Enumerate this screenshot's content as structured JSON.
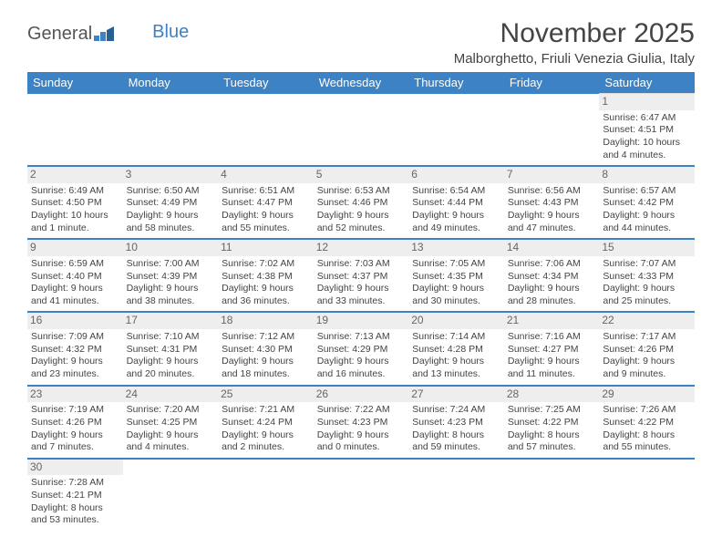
{
  "logo": {
    "text1": "General",
    "text2": "Blue"
  },
  "title": "November 2025",
  "location": "Malborghetto, Friuli Venezia Giulia, Italy",
  "colors": {
    "header_bg": "#3d82c4",
    "header_text": "#ffffff",
    "row_divider": "#3d82c4",
    "daynum_bg": "#eeeeee",
    "text": "#444444"
  },
  "day_headers": [
    "Sunday",
    "Monday",
    "Tuesday",
    "Wednesday",
    "Thursday",
    "Friday",
    "Saturday"
  ],
  "weeks": [
    [
      null,
      null,
      null,
      null,
      null,
      null,
      {
        "n": "1",
        "sr": "Sunrise: 6:47 AM",
        "ss": "Sunset: 4:51 PM",
        "d1": "Daylight: 10 hours",
        "d2": "and 4 minutes."
      }
    ],
    [
      {
        "n": "2",
        "sr": "Sunrise: 6:49 AM",
        "ss": "Sunset: 4:50 PM",
        "d1": "Daylight: 10 hours",
        "d2": "and 1 minute."
      },
      {
        "n": "3",
        "sr": "Sunrise: 6:50 AM",
        "ss": "Sunset: 4:49 PM",
        "d1": "Daylight: 9 hours",
        "d2": "and 58 minutes."
      },
      {
        "n": "4",
        "sr": "Sunrise: 6:51 AM",
        "ss": "Sunset: 4:47 PM",
        "d1": "Daylight: 9 hours",
        "d2": "and 55 minutes."
      },
      {
        "n": "5",
        "sr": "Sunrise: 6:53 AM",
        "ss": "Sunset: 4:46 PM",
        "d1": "Daylight: 9 hours",
        "d2": "and 52 minutes."
      },
      {
        "n": "6",
        "sr": "Sunrise: 6:54 AM",
        "ss": "Sunset: 4:44 PM",
        "d1": "Daylight: 9 hours",
        "d2": "and 49 minutes."
      },
      {
        "n": "7",
        "sr": "Sunrise: 6:56 AM",
        "ss": "Sunset: 4:43 PM",
        "d1": "Daylight: 9 hours",
        "d2": "and 47 minutes."
      },
      {
        "n": "8",
        "sr": "Sunrise: 6:57 AM",
        "ss": "Sunset: 4:42 PM",
        "d1": "Daylight: 9 hours",
        "d2": "and 44 minutes."
      }
    ],
    [
      {
        "n": "9",
        "sr": "Sunrise: 6:59 AM",
        "ss": "Sunset: 4:40 PM",
        "d1": "Daylight: 9 hours",
        "d2": "and 41 minutes."
      },
      {
        "n": "10",
        "sr": "Sunrise: 7:00 AM",
        "ss": "Sunset: 4:39 PM",
        "d1": "Daylight: 9 hours",
        "d2": "and 38 minutes."
      },
      {
        "n": "11",
        "sr": "Sunrise: 7:02 AM",
        "ss": "Sunset: 4:38 PM",
        "d1": "Daylight: 9 hours",
        "d2": "and 36 minutes."
      },
      {
        "n": "12",
        "sr": "Sunrise: 7:03 AM",
        "ss": "Sunset: 4:37 PM",
        "d1": "Daylight: 9 hours",
        "d2": "and 33 minutes."
      },
      {
        "n": "13",
        "sr": "Sunrise: 7:05 AM",
        "ss": "Sunset: 4:35 PM",
        "d1": "Daylight: 9 hours",
        "d2": "and 30 minutes."
      },
      {
        "n": "14",
        "sr": "Sunrise: 7:06 AM",
        "ss": "Sunset: 4:34 PM",
        "d1": "Daylight: 9 hours",
        "d2": "and 28 minutes."
      },
      {
        "n": "15",
        "sr": "Sunrise: 7:07 AM",
        "ss": "Sunset: 4:33 PM",
        "d1": "Daylight: 9 hours",
        "d2": "and 25 minutes."
      }
    ],
    [
      {
        "n": "16",
        "sr": "Sunrise: 7:09 AM",
        "ss": "Sunset: 4:32 PM",
        "d1": "Daylight: 9 hours",
        "d2": "and 23 minutes."
      },
      {
        "n": "17",
        "sr": "Sunrise: 7:10 AM",
        "ss": "Sunset: 4:31 PM",
        "d1": "Daylight: 9 hours",
        "d2": "and 20 minutes."
      },
      {
        "n": "18",
        "sr": "Sunrise: 7:12 AM",
        "ss": "Sunset: 4:30 PM",
        "d1": "Daylight: 9 hours",
        "d2": "and 18 minutes."
      },
      {
        "n": "19",
        "sr": "Sunrise: 7:13 AM",
        "ss": "Sunset: 4:29 PM",
        "d1": "Daylight: 9 hours",
        "d2": "and 16 minutes."
      },
      {
        "n": "20",
        "sr": "Sunrise: 7:14 AM",
        "ss": "Sunset: 4:28 PM",
        "d1": "Daylight: 9 hours",
        "d2": "and 13 minutes."
      },
      {
        "n": "21",
        "sr": "Sunrise: 7:16 AM",
        "ss": "Sunset: 4:27 PM",
        "d1": "Daylight: 9 hours",
        "d2": "and 11 minutes."
      },
      {
        "n": "22",
        "sr": "Sunrise: 7:17 AM",
        "ss": "Sunset: 4:26 PM",
        "d1": "Daylight: 9 hours",
        "d2": "and 9 minutes."
      }
    ],
    [
      {
        "n": "23",
        "sr": "Sunrise: 7:19 AM",
        "ss": "Sunset: 4:26 PM",
        "d1": "Daylight: 9 hours",
        "d2": "and 7 minutes."
      },
      {
        "n": "24",
        "sr": "Sunrise: 7:20 AM",
        "ss": "Sunset: 4:25 PM",
        "d1": "Daylight: 9 hours",
        "d2": "and 4 minutes."
      },
      {
        "n": "25",
        "sr": "Sunrise: 7:21 AM",
        "ss": "Sunset: 4:24 PM",
        "d1": "Daylight: 9 hours",
        "d2": "and 2 minutes."
      },
      {
        "n": "26",
        "sr": "Sunrise: 7:22 AM",
        "ss": "Sunset: 4:23 PM",
        "d1": "Daylight: 9 hours",
        "d2": "and 0 minutes."
      },
      {
        "n": "27",
        "sr": "Sunrise: 7:24 AM",
        "ss": "Sunset: 4:23 PM",
        "d1": "Daylight: 8 hours",
        "d2": "and 59 minutes."
      },
      {
        "n": "28",
        "sr": "Sunrise: 7:25 AM",
        "ss": "Sunset: 4:22 PM",
        "d1": "Daylight: 8 hours",
        "d2": "and 57 minutes."
      },
      {
        "n": "29",
        "sr": "Sunrise: 7:26 AM",
        "ss": "Sunset: 4:22 PM",
        "d1": "Daylight: 8 hours",
        "d2": "and 55 minutes."
      }
    ],
    [
      {
        "n": "30",
        "sr": "Sunrise: 7:28 AM",
        "ss": "Sunset: 4:21 PM",
        "d1": "Daylight: 8 hours",
        "d2": "and 53 minutes."
      },
      null,
      null,
      null,
      null,
      null,
      null
    ]
  ]
}
